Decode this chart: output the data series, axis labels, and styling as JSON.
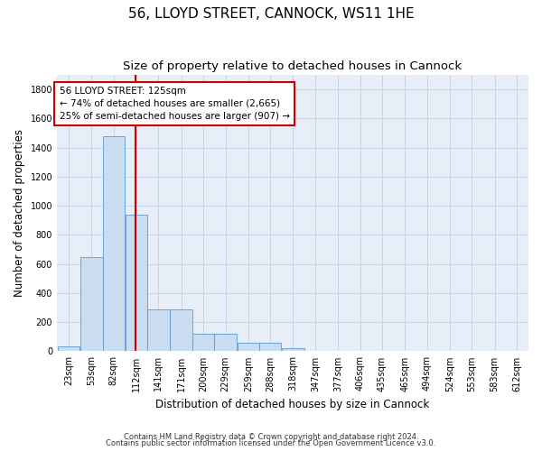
{
  "title": "56, LLOYD STREET, CANNOCK, WS11 1HE",
  "subtitle": "Size of property relative to detached houses in Cannock",
  "xlabel": "Distribution of detached houses by size in Cannock",
  "ylabel": "Number of detached properties",
  "bins": [
    "23sqm",
    "53sqm",
    "82sqm",
    "112sqm",
    "141sqm",
    "171sqm",
    "200sqm",
    "229sqm",
    "259sqm",
    "288sqm",
    "318sqm",
    "347sqm",
    "377sqm",
    "406sqm",
    "435sqm",
    "465sqm",
    "494sqm",
    "524sqm",
    "553sqm",
    "583sqm",
    "612sqm"
  ],
  "bin_lefts": [
    23,
    53,
    82,
    112,
    141,
    171,
    200,
    229,
    259,
    288,
    318,
    347,
    377,
    406,
    435,
    465,
    494,
    524,
    553,
    583,
    612
  ],
  "bin_width": 29,
  "values": [
    35,
    650,
    1480,
    940,
    285,
    285,
    120,
    120,
    60,
    60,
    20,
    5,
    5,
    5,
    5,
    5,
    5,
    5,
    5,
    5,
    5
  ],
  "bar_color": "#c9dcf0",
  "bar_edge_color": "#5a9bd4",
  "vline_x": 125,
  "vline_color": "#cc0000",
  "annotation_text": "56 LLOYD STREET: 125sqm\n← 74% of detached houses are smaller (2,665)\n25% of semi-detached houses are larger (907) →",
  "annotation_box_color": "#ffffff",
  "annotation_box_edge": "#cc0000",
  "ylim": [
    0,
    1900
  ],
  "yticks": [
    0,
    200,
    400,
    600,
    800,
    1000,
    1200,
    1400,
    1600,
    1800
  ],
  "grid_color": "#c8d4e8",
  "plot_bg_color": "#e8eef8",
  "footer1": "Contains HM Land Registry data © Crown copyright and database right 2024.",
  "footer2": "Contains public sector information licensed under the Open Government Licence v3.0.",
  "title_fontsize": 11,
  "subtitle_fontsize": 9.5,
  "ylabel_fontsize": 8.5,
  "xlabel_fontsize": 8.5,
  "tick_fontsize": 7,
  "footer_fontsize": 6,
  "annotation_fontsize": 7.5
}
